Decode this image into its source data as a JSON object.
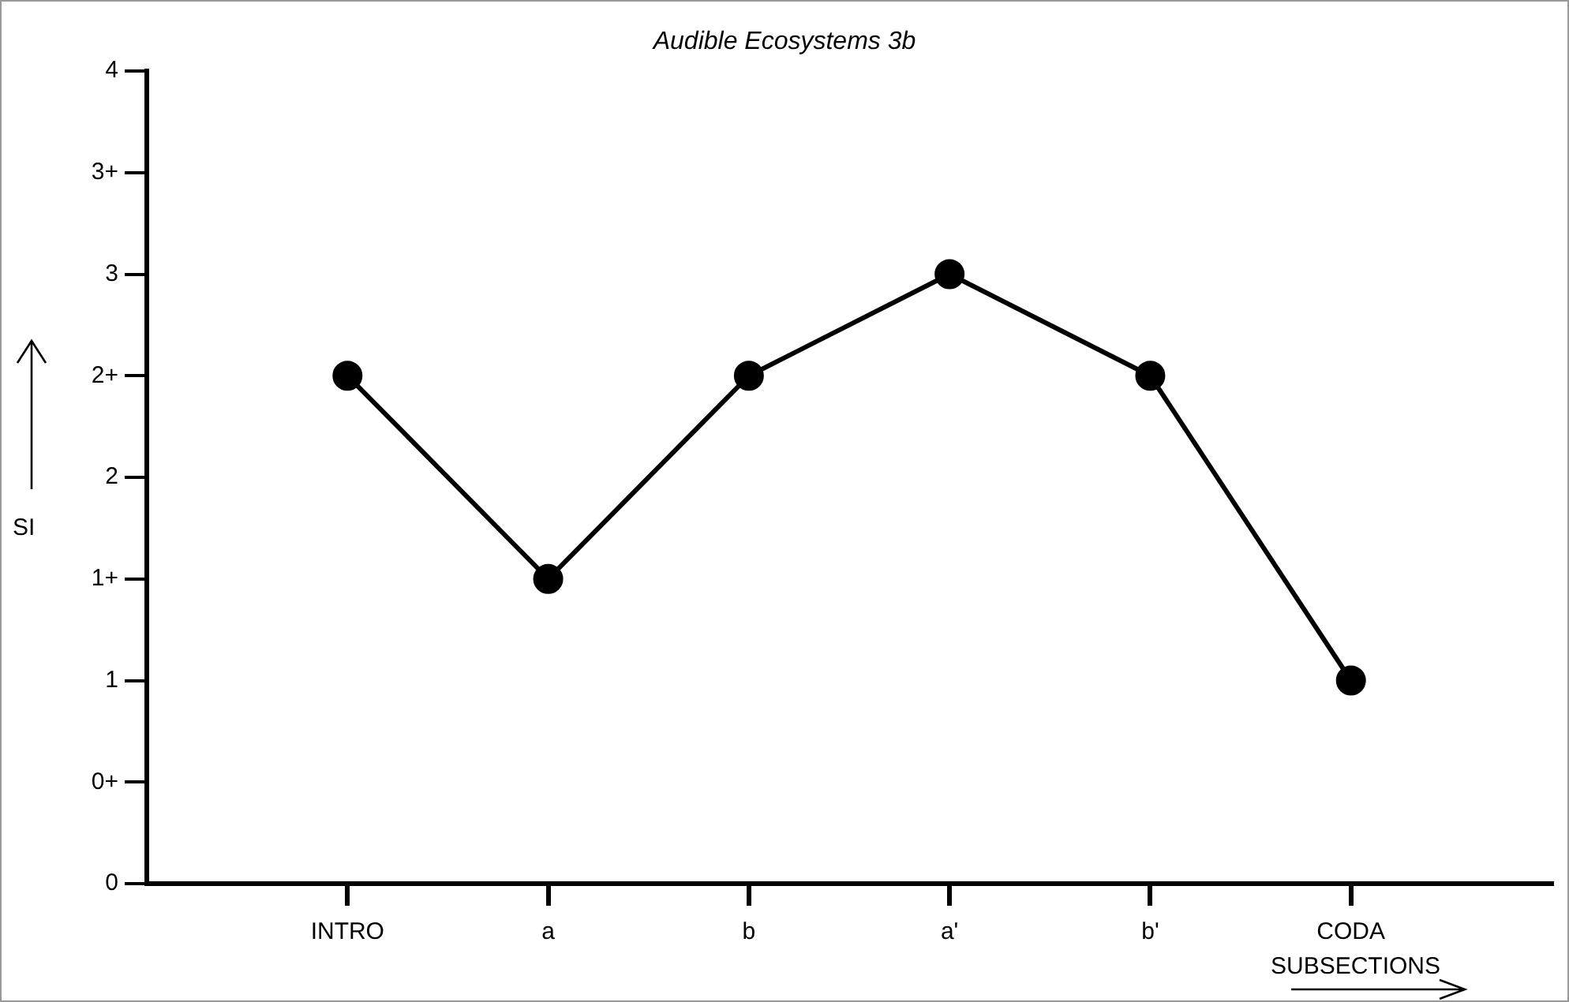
{
  "chart_data": {
    "type": "line",
    "title": "Audible Ecosystems 3b",
    "xlabel": "SUBSECTIONS",
    "ylabel": "SI",
    "categories": [
      "INTRO",
      "a",
      "b",
      "a'",
      "b'",
      "CODA"
    ],
    "series": [
      {
        "color": "#000000",
        "values": [
          2.5,
          1.5,
          2.5,
          3,
          2.5,
          1
        ]
      }
    ],
    "ylim": [
      0,
      4
    ],
    "yticks": [
      0,
      {
        "value": 0.5,
        "label": "0+"
      },
      1,
      {
        "value": 1.5,
        "label": "1+"
      },
      2,
      {
        "value": 2.5,
        "label": "2+"
      },
      3,
      {
        "value": 3.5,
        "label": "3+"
      },
      4
    ],
    "grid": false,
    "legend": false,
    "marker": "circle",
    "line_style": "solid"
  }
}
